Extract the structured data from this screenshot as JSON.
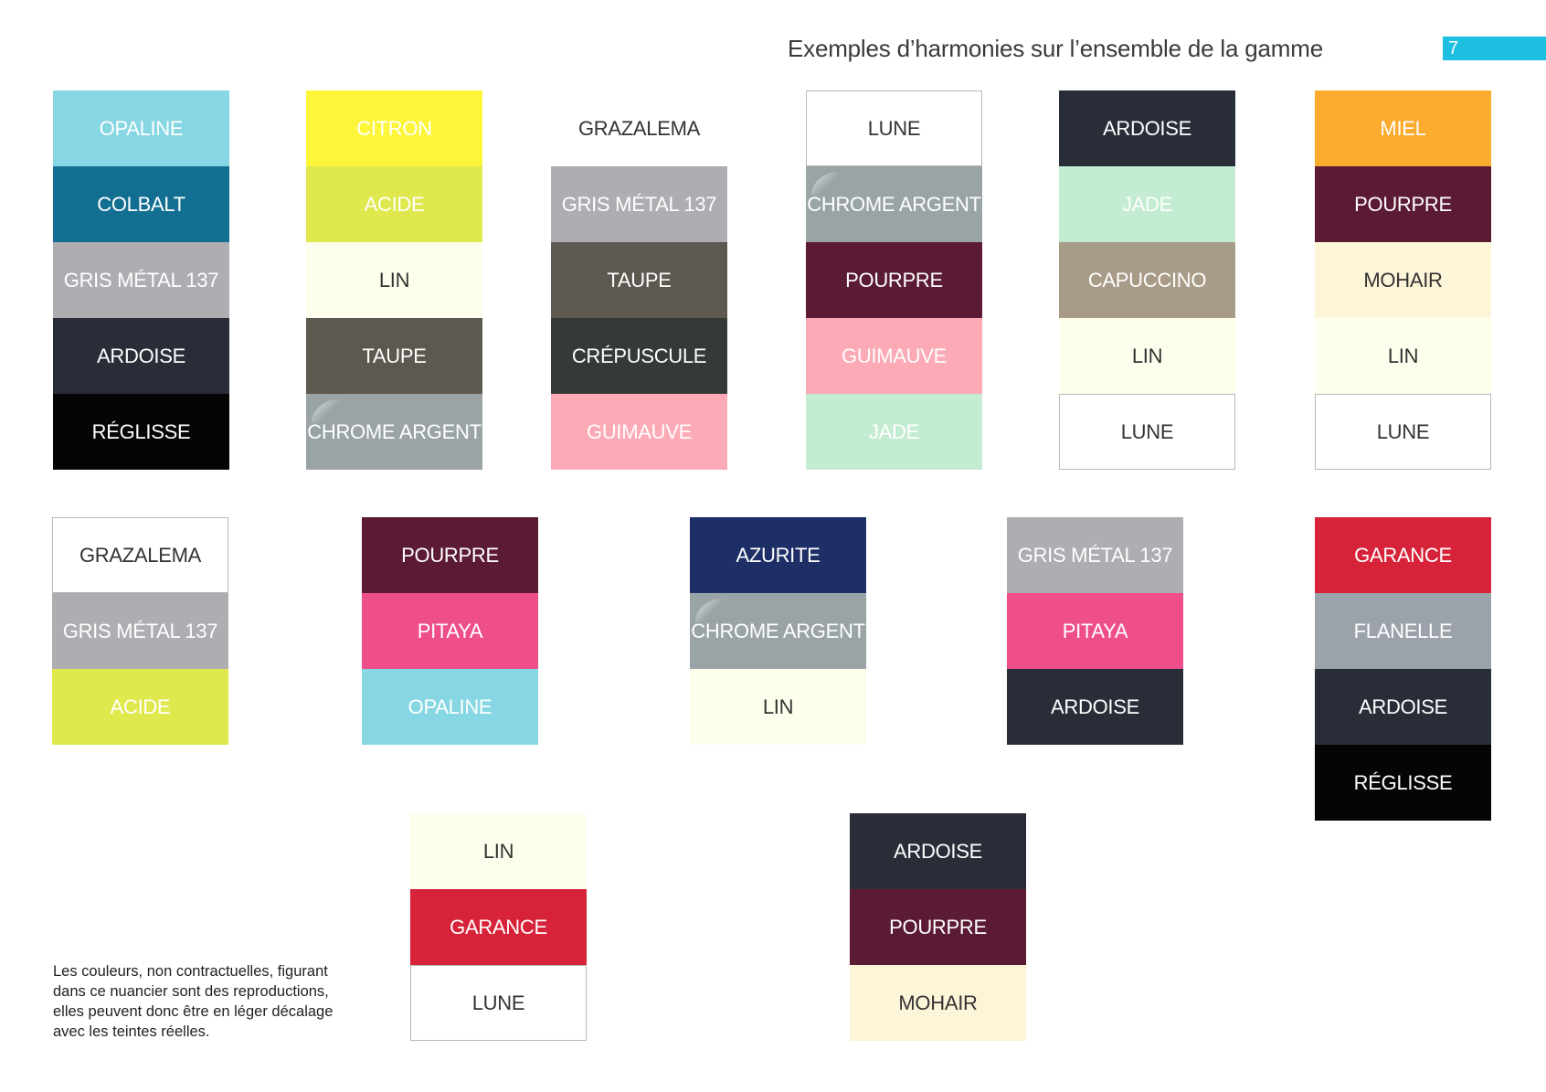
{
  "header": {
    "title": "Exemples d’harmonies sur l’ensemble de la gamme",
    "page_number": "7",
    "accent_color": "#1cbfdf"
  },
  "palettes": [
    {
      "swatches": [
        {
          "label": "OPALINE",
          "bg": "#86d6e3",
          "fg": "#ffffff"
        },
        {
          "label": "COLBALT",
          "bg": "#136f91",
          "fg": "#ffffff"
        },
        {
          "label": "GRIS MÉTAL 137",
          "bg": "#aeadb2",
          "fg": "#ffffff"
        },
        {
          "label": "ARDOISE",
          "bg": "#282d38",
          "fg": "#ffffff"
        },
        {
          "label": "RÉGLISSE",
          "bg": "#050505",
          "fg": "#ffffff"
        }
      ]
    },
    {
      "swatches": [
        {
          "label": "CITRON",
          "bg": "#fdf53a",
          "fg": "#ffffff"
        },
        {
          "label": "ACIDE",
          "bg": "#dfe84c",
          "fg": "#ffffff"
        },
        {
          "label": "LIN",
          "bg": "#fdfeec",
          "fg": "#333333"
        },
        {
          "label": "TAUPE",
          "bg": "#5d5850",
          "fg": "#ffffff"
        },
        {
          "label": "CHROME ARGENT",
          "bg": "#9aa3a6",
          "fg": "#ffffff",
          "sheen": true
        }
      ]
    },
    {
      "swatches": [
        {
          "label": "GRAZALEMA",
          "bg": "#ffffff",
          "fg": "#333333"
        },
        {
          "label": "GRIS MÉTAL 137",
          "bg": "#aeadb2",
          "fg": "#ffffff"
        },
        {
          "label": "TAUPE",
          "bg": "#5d5850",
          "fg": "#ffffff"
        },
        {
          "label": "CRÉPUSCULE",
          "bg": "#343a35",
          "fg": "#ffffff"
        },
        {
          "label": "GUIMAUVE",
          "bg": "#fbaab6",
          "fg": "#ffffff"
        }
      ]
    },
    {
      "swatches": [
        {
          "label": "LUNE",
          "bg": "#ffffff",
          "fg": "#333333",
          "border": true
        },
        {
          "label": "CHROME ARGENT",
          "bg": "#9aa3a6",
          "fg": "#ffffff",
          "sheen": true
        },
        {
          "label": "POURPRE",
          "bg": "#5c1b35",
          "fg": "#ffffff"
        },
        {
          "label": "GUIMAUVE",
          "bg": "#fbaab6",
          "fg": "#ffffff"
        },
        {
          "label": "JADE",
          "bg": "#c4ecd2",
          "fg": "#ffffff"
        }
      ]
    },
    {
      "swatches": [
        {
          "label": "ARDOISE",
          "bg": "#282d38",
          "fg": "#ffffff"
        },
        {
          "label": "JADE",
          "bg": "#c4ecd2",
          "fg": "#ffffff"
        },
        {
          "label": "CAPUCCINO",
          "bg": "#a89b88",
          "fg": "#ffffff"
        },
        {
          "label": "LIN",
          "bg": "#fdfeec",
          "fg": "#333333"
        },
        {
          "label": "LUNE",
          "bg": "#ffffff",
          "fg": "#333333",
          "border": true
        }
      ]
    },
    {
      "swatches": [
        {
          "label": "MIEL",
          "bg": "#fbab2e",
          "fg": "#ffffff"
        },
        {
          "label": "POURPRE",
          "bg": "#5c1b35",
          "fg": "#ffffff"
        },
        {
          "label": "MOHAIR",
          "bg": "#fdf5d8",
          "fg": "#333333"
        },
        {
          "label": "LIN",
          "bg": "#fdfeec",
          "fg": "#333333"
        },
        {
          "label": "LUNE",
          "bg": "#ffffff",
          "fg": "#333333",
          "border": true
        }
      ]
    },
    {
      "swatches": [
        {
          "label": "GRAZALEMA",
          "bg": "#ffffff",
          "fg": "#333333",
          "border": true
        },
        {
          "label": "GRIS MÉTAL 137",
          "bg": "#aeadb2",
          "fg": "#ffffff"
        },
        {
          "label": "ACIDE",
          "bg": "#dfe84c",
          "fg": "#ffffff"
        }
      ]
    },
    {
      "swatches": [
        {
          "label": "POURPRE",
          "bg": "#5c1b35",
          "fg": "#ffffff"
        },
        {
          "label": "PITAYA",
          "bg": "#ee4f8a",
          "fg": "#ffffff"
        },
        {
          "label": "OPALINE",
          "bg": "#86d6e3",
          "fg": "#ffffff"
        }
      ]
    },
    {
      "swatches": [
        {
          "label": "AZURITE",
          "bg": "#1d2f66",
          "fg": "#ffffff"
        },
        {
          "label": "CHROME ARGENT",
          "bg": "#9aa3a6",
          "fg": "#ffffff",
          "sheen": true
        },
        {
          "label": "LIN",
          "bg": "#fdfeec",
          "fg": "#333333"
        }
      ]
    },
    {
      "swatches": [
        {
          "label": "GRIS MÉTAL 137",
          "bg": "#aeadb2",
          "fg": "#ffffff"
        },
        {
          "label": "PITAYA",
          "bg": "#ee4f8a",
          "fg": "#ffffff"
        },
        {
          "label": "ARDOISE",
          "bg": "#282d38",
          "fg": "#ffffff"
        }
      ]
    },
    {
      "swatches": [
        {
          "label": "GARANCE",
          "bg": "#d72339",
          "fg": "#ffffff"
        },
        {
          "label": "FLANELLE",
          "bg": "#9ca2aa",
          "fg": "#ffffff"
        },
        {
          "label": "ARDOISE",
          "bg": "#282d38",
          "fg": "#ffffff"
        },
        {
          "label": "RÉGLISSE",
          "bg": "#050505",
          "fg": "#ffffff"
        }
      ]
    },
    {
      "swatches": [
        {
          "label": "LIN",
          "bg": "#fdfeec",
          "fg": "#333333"
        },
        {
          "label": "GARANCE",
          "bg": "#d72339",
          "fg": "#ffffff"
        },
        {
          "label": "LUNE",
          "bg": "#ffffff",
          "fg": "#333333",
          "border": true
        }
      ]
    },
    {
      "swatches": [
        {
          "label": "ARDOISE",
          "bg": "#282d38",
          "fg": "#ffffff"
        },
        {
          "label": "POURPRE",
          "bg": "#5c1b35",
          "fg": "#ffffff"
        },
        {
          "label": "MOHAIR",
          "bg": "#fdf5d8",
          "fg": "#333333"
        }
      ]
    }
  ],
  "note": {
    "lines": [
      "Les couleurs, non contractuelles, figurant",
      "dans ce nuancier sont des reproductions,",
      "elles peuvent donc être en léger décalage",
      "avec les teintes réelles."
    ]
  }
}
